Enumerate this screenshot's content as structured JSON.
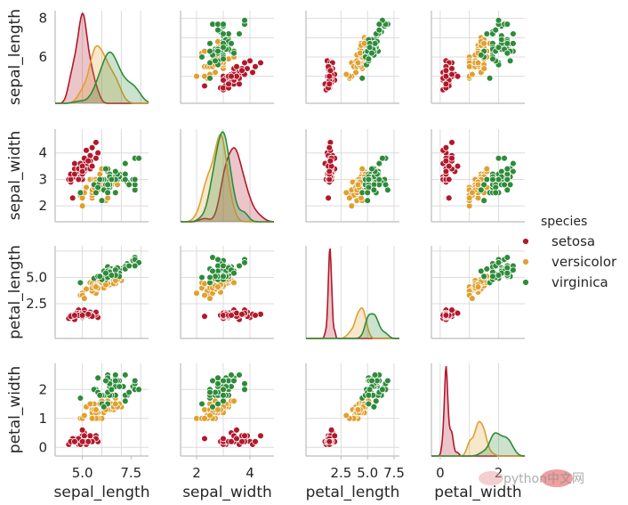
{
  "chart_data": {
    "type": "scatter",
    "title": "",
    "variables": [
      "sepal_length",
      "sepal_width",
      "petal_length",
      "petal_width"
    ],
    "hue": "species",
    "legend": {
      "title": "species",
      "location": "right"
    },
    "species": [
      {
        "name": "setosa",
        "color": "#b2182b"
      },
      {
        "name": "versicolor",
        "color": "#e0a030"
      },
      {
        "name": "virginica",
        "color": "#2e8b3a"
      }
    ],
    "axis_ranges": {
      "sepal_length": [
        3.6,
        8.4
      ],
      "sepal_width": [
        1.4,
        4.9
      ],
      "petal_length": [
        -0.8,
        8.0
      ],
      "petal_width": [
        -0.3,
        2.9
      ]
    },
    "ticks": {
      "sepal_length": {
        "bottom": [
          5.0,
          7.5
        ],
        "bottom_labels": [
          "5.0",
          "7.5"
        ],
        "left": [
          6,
          8
        ],
        "left_labels": [
          "6",
          "8"
        ]
      },
      "sepal_width": {
        "bottom": [
          2,
          4
        ],
        "bottom_labels": [
          "2",
          "4"
        ],
        "left": [
          2,
          3,
          4
        ],
        "left_labels": [
          "2",
          "3",
          "4"
        ]
      },
      "petal_length": {
        "bottom": [
          2.5,
          5.0,
          7.5
        ],
        "bottom_labels": [
          "2.5",
          "5.0",
          "7.5"
        ],
        "left": [
          2.5,
          5.0
        ],
        "left_labels": [
          "2.5",
          "5.0"
        ]
      },
      "petal_width": {
        "bottom": [
          0,
          2
        ],
        "bottom_labels": [
          "0",
          "2"
        ],
        "left": [
          0,
          1,
          2
        ],
        "left_labels": [
          "0",
          "1",
          "2"
        ]
      }
    },
    "gridlines": {
      "sepal_length": [
        5,
        6,
        7,
        8
      ],
      "sepal_width": [
        2,
        3,
        4
      ],
      "petal_length": [
        2.5,
        5.0,
        7.5
      ],
      "petal_width": [
        0,
        1,
        2
      ]
    },
    "grid": true,
    "diagonal": "kde",
    "offdiagonal": "scatter",
    "samples": {
      "setosa": [
        [
          5.1,
          3.5,
          1.4,
          0.2
        ],
        [
          4.9,
          3.0,
          1.4,
          0.2
        ],
        [
          4.7,
          3.2,
          1.3,
          0.2
        ],
        [
          4.6,
          3.1,
          1.5,
          0.2
        ],
        [
          5.0,
          3.6,
          1.4,
          0.2
        ],
        [
          5.4,
          3.9,
          1.7,
          0.4
        ],
        [
          4.6,
          3.4,
          1.4,
          0.3
        ],
        [
          5.0,
          3.4,
          1.5,
          0.2
        ],
        [
          4.4,
          2.9,
          1.4,
          0.2
        ],
        [
          4.9,
          3.1,
          1.5,
          0.1
        ],
        [
          5.4,
          3.7,
          1.5,
          0.2
        ],
        [
          4.8,
          3.4,
          1.6,
          0.2
        ],
        [
          4.8,
          3.0,
          1.4,
          0.1
        ],
        [
          4.3,
          3.0,
          1.1,
          0.1
        ],
        [
          5.8,
          4.0,
          1.2,
          0.2
        ],
        [
          5.7,
          4.4,
          1.5,
          0.4
        ],
        [
          5.4,
          3.9,
          1.3,
          0.4
        ],
        [
          5.1,
          3.5,
          1.4,
          0.3
        ],
        [
          5.7,
          3.8,
          1.7,
          0.3
        ],
        [
          5.1,
          3.8,
          1.5,
          0.3
        ],
        [
          5.4,
          3.4,
          1.7,
          0.2
        ],
        [
          5.1,
          3.7,
          1.5,
          0.4
        ],
        [
          4.6,
          3.6,
          1.0,
          0.2
        ],
        [
          5.1,
          3.3,
          1.7,
          0.5
        ],
        [
          4.8,
          3.4,
          1.9,
          0.2
        ],
        [
          5.0,
          3.0,
          1.6,
          0.2
        ],
        [
          5.0,
          3.4,
          1.6,
          0.4
        ],
        [
          5.2,
          3.5,
          1.5,
          0.2
        ],
        [
          5.2,
          3.4,
          1.4,
          0.2
        ],
        [
          4.7,
          3.2,
          1.6,
          0.2
        ],
        [
          4.8,
          3.1,
          1.6,
          0.2
        ],
        [
          5.4,
          3.4,
          1.5,
          0.4
        ],
        [
          5.2,
          4.1,
          1.5,
          0.1
        ],
        [
          5.5,
          4.2,
          1.4,
          0.2
        ],
        [
          4.9,
          3.1,
          1.5,
          0.2
        ],
        [
          5.0,
          3.2,
          1.2,
          0.2
        ],
        [
          5.5,
          3.5,
          1.3,
          0.2
        ],
        [
          4.9,
          3.6,
          1.4,
          0.1
        ],
        [
          4.4,
          3.0,
          1.3,
          0.2
        ],
        [
          5.1,
          3.4,
          1.5,
          0.2
        ],
        [
          5.0,
          3.5,
          1.3,
          0.3
        ],
        [
          4.5,
          2.3,
          1.3,
          0.3
        ],
        [
          4.4,
          3.2,
          1.3,
          0.2
        ],
        [
          5.0,
          3.5,
          1.6,
          0.6
        ],
        [
          5.1,
          3.8,
          1.9,
          0.4
        ],
        [
          4.8,
          3.0,
          1.4,
          0.3
        ],
        [
          5.1,
          3.8,
          1.6,
          0.2
        ],
        [
          4.6,
          3.2,
          1.4,
          0.2
        ],
        [
          5.3,
          3.7,
          1.5,
          0.2
        ],
        [
          5.0,
          3.3,
          1.4,
          0.2
        ]
      ],
      "versicolor": [
        [
          7.0,
          3.2,
          4.7,
          1.4
        ],
        [
          6.4,
          3.2,
          4.5,
          1.5
        ],
        [
          6.9,
          3.1,
          4.9,
          1.5
        ],
        [
          5.5,
          2.3,
          4.0,
          1.3
        ],
        [
          6.5,
          2.8,
          4.6,
          1.5
        ],
        [
          5.7,
          2.8,
          4.5,
          1.3
        ],
        [
          6.3,
          3.3,
          4.7,
          1.6
        ],
        [
          4.9,
          2.4,
          3.3,
          1.0
        ],
        [
          6.6,
          2.9,
          4.6,
          1.3
        ],
        [
          5.2,
          2.7,
          3.9,
          1.4
        ],
        [
          5.0,
          2.0,
          3.5,
          1.0
        ],
        [
          5.9,
          3.0,
          4.2,
          1.5
        ],
        [
          6.0,
          2.2,
          4.0,
          1.0
        ],
        [
          6.1,
          2.9,
          4.7,
          1.4
        ],
        [
          5.6,
          2.9,
          3.6,
          1.3
        ],
        [
          6.7,
          3.1,
          4.4,
          1.4
        ],
        [
          5.6,
          3.0,
          4.5,
          1.5
        ],
        [
          5.8,
          2.7,
          4.1,
          1.0
        ],
        [
          6.2,
          2.2,
          4.5,
          1.5
        ],
        [
          5.6,
          2.5,
          3.9,
          1.1
        ],
        [
          5.9,
          3.2,
          4.8,
          1.8
        ],
        [
          6.1,
          2.8,
          4.0,
          1.3
        ],
        [
          6.3,
          2.5,
          4.9,
          1.5
        ],
        [
          6.1,
          2.8,
          4.7,
          1.2
        ],
        [
          6.4,
          2.9,
          4.3,
          1.3
        ],
        [
          6.6,
          3.0,
          4.4,
          1.4
        ],
        [
          6.8,
          2.8,
          4.8,
          1.4
        ],
        [
          6.7,
          3.0,
          5.0,
          1.7
        ],
        [
          6.0,
          2.9,
          4.5,
          1.5
        ],
        [
          5.7,
          2.6,
          3.5,
          1.0
        ],
        [
          5.5,
          2.4,
          3.8,
          1.1
        ],
        [
          5.5,
          2.4,
          3.7,
          1.0
        ],
        [
          5.8,
          2.7,
          3.9,
          1.2
        ],
        [
          6.0,
          2.7,
          5.1,
          1.6
        ],
        [
          5.4,
          3.0,
          4.5,
          1.5
        ],
        [
          6.0,
          3.4,
          4.5,
          1.6
        ],
        [
          6.7,
          3.1,
          4.7,
          1.5
        ],
        [
          6.3,
          2.3,
          4.4,
          1.3
        ],
        [
          5.6,
          3.0,
          4.1,
          1.3
        ],
        [
          5.5,
          2.5,
          4.0,
          1.3
        ],
        [
          5.5,
          2.6,
          4.4,
          1.2
        ],
        [
          6.1,
          3.0,
          4.6,
          1.4
        ],
        [
          5.8,
          2.6,
          4.0,
          1.2
        ],
        [
          5.0,
          2.3,
          3.3,
          1.0
        ],
        [
          5.6,
          2.7,
          4.2,
          1.3
        ],
        [
          5.7,
          3.0,
          4.2,
          1.2
        ],
        [
          5.7,
          2.9,
          4.2,
          1.3
        ],
        [
          6.2,
          2.9,
          4.3,
          1.3
        ],
        [
          5.1,
          2.5,
          3.0,
          1.1
        ],
        [
          5.7,
          2.8,
          4.1,
          1.3
        ]
      ],
      "virginica": [
        [
          6.3,
          3.3,
          6.0,
          2.5
        ],
        [
          5.8,
          2.7,
          5.1,
          1.9
        ],
        [
          7.1,
          3.0,
          5.9,
          2.1
        ],
        [
          6.3,
          2.9,
          5.6,
          1.8
        ],
        [
          6.5,
          3.0,
          5.8,
          2.2
        ],
        [
          7.6,
          3.0,
          6.6,
          2.1
        ],
        [
          4.9,
          2.5,
          4.5,
          1.7
        ],
        [
          7.3,
          2.9,
          6.3,
          1.8
        ],
        [
          6.7,
          2.5,
          5.8,
          1.8
        ],
        [
          7.2,
          3.6,
          6.1,
          2.5
        ],
        [
          6.5,
          3.2,
          5.1,
          2.0
        ],
        [
          6.4,
          2.7,
          5.3,
          1.9
        ],
        [
          6.8,
          3.0,
          5.5,
          2.1
        ],
        [
          5.7,
          2.5,
          5.0,
          2.0
        ],
        [
          5.8,
          2.8,
          5.1,
          2.4
        ],
        [
          6.4,
          3.2,
          5.3,
          2.3
        ],
        [
          6.5,
          3.0,
          5.5,
          1.8
        ],
        [
          7.7,
          3.8,
          6.7,
          2.2
        ],
        [
          7.7,
          2.6,
          6.9,
          2.3
        ],
        [
          6.0,
          2.2,
          5.0,
          1.5
        ],
        [
          6.9,
          3.2,
          5.7,
          2.3
        ],
        [
          5.6,
          2.8,
          4.9,
          2.0
        ],
        [
          7.7,
          2.8,
          6.7,
          2.0
        ],
        [
          6.3,
          2.7,
          4.9,
          1.8
        ],
        [
          6.7,
          3.3,
          5.7,
          2.1
        ],
        [
          7.2,
          3.2,
          6.0,
          1.8
        ],
        [
          6.2,
          2.8,
          4.8,
          1.8
        ],
        [
          6.1,
          3.0,
          4.9,
          1.8
        ],
        [
          6.4,
          2.8,
          5.6,
          2.1
        ],
        [
          7.2,
          3.0,
          5.8,
          1.6
        ],
        [
          7.4,
          2.8,
          6.1,
          1.9
        ],
        [
          7.9,
          3.8,
          6.4,
          2.0
        ],
        [
          6.4,
          2.8,
          5.6,
          2.2
        ],
        [
          6.3,
          2.8,
          5.1,
          1.5
        ],
        [
          6.1,
          2.6,
          5.6,
          1.4
        ],
        [
          7.7,
          3.0,
          6.1,
          2.3
        ],
        [
          6.3,
          3.4,
          5.6,
          2.4
        ],
        [
          6.4,
          3.1,
          5.5,
          1.8
        ],
        [
          6.0,
          3.0,
          4.8,
          1.8
        ],
        [
          6.9,
          3.1,
          5.4,
          2.1
        ],
        [
          6.7,
          3.1,
          5.6,
          2.4
        ],
        [
          6.9,
          3.1,
          5.1,
          2.3
        ],
        [
          5.8,
          2.7,
          5.1,
          1.9
        ],
        [
          6.8,
          3.2,
          5.9,
          2.3
        ],
        [
          6.7,
          3.3,
          5.7,
          2.5
        ],
        [
          6.7,
          3.0,
          5.2,
          2.3
        ],
        [
          6.3,
          2.5,
          5.0,
          1.9
        ],
        [
          6.5,
          3.0,
          5.2,
          2.0
        ],
        [
          6.2,
          3.4,
          5.4,
          2.3
        ],
        [
          5.9,
          3.0,
          5.1,
          1.8
        ]
      ]
    }
  },
  "watermark": {
    "text": "python中文网"
  }
}
